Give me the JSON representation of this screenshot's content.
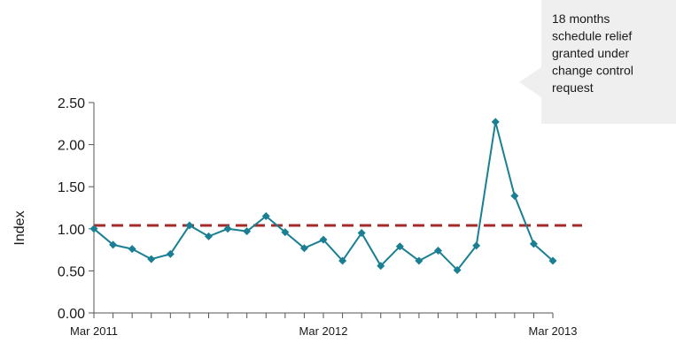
{
  "chart_data": {
    "type": "line",
    "ylabel": "Index",
    "ylim": [
      0,
      2.5
    ],
    "yticks": [
      "0.00",
      "0.50",
      "1.00",
      "1.50",
      "2.00",
      "2.50"
    ],
    "x_tick_labels": [
      {
        "index": 0,
        "label": "Mar 2011"
      },
      {
        "index": 12,
        "label": "Mar 2012"
      },
      {
        "index": 24,
        "label": "Mar 2013"
      }
    ],
    "x_count": 25,
    "series": [
      {
        "color": "#1a7f93",
        "values": [
          1.0,
          0.81,
          0.76,
          0.64,
          0.7,
          1.04,
          0.91,
          1.0,
          0.97,
          1.15,
          0.96,
          0.77,
          0.87,
          0.62,
          0.95,
          0.56,
          0.79,
          0.62,
          0.74,
          0.51,
          0.8,
          2.27,
          1.39,
          0.82,
          0.62
        ]
      }
    ],
    "reference_line": {
      "value": 1.04,
      "color": "#a52a2a",
      "style": "dashed"
    },
    "annotation": {
      "lines": [
        "18 months",
        "schedule relief",
        "granted under",
        "change control",
        "request"
      ],
      "target_index": 21
    }
  }
}
